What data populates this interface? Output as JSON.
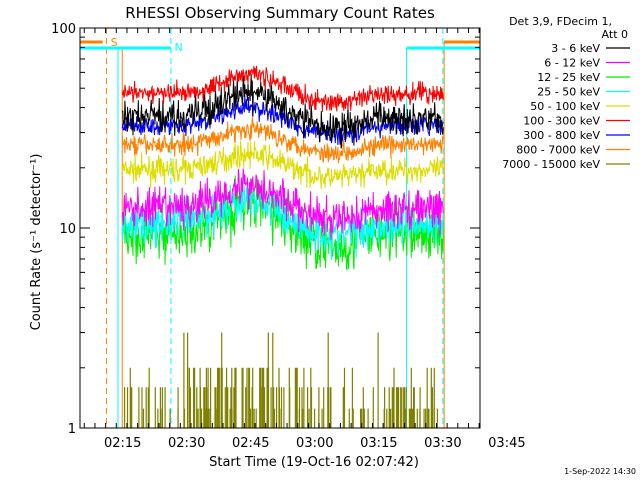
{
  "chart_data": {
    "type": "line",
    "title": "RHESSI Observing Summary Count Rates",
    "xlabel": "Start Time (19-Oct-16 02:07:42)",
    "ylabel": "Count Rate (s⁻¹ detector⁻¹)",
    "yscale": "log",
    "ylim": [
      1,
      100
    ],
    "xlim_minutes": [
      -2.7,
      91
    ],
    "y_ticks": [
      "1",
      "10",
      "100"
    ],
    "x_ticks": [
      {
        "label": "02:15",
        "minute": 7.3
      },
      {
        "label": "02:30",
        "minute": 22.3
      },
      {
        "label": "02:45",
        "minute": 37.3
      },
      {
        "label": "03:00",
        "minute": 52.3
      },
      {
        "label": "03:15",
        "minute": 67.3
      },
      {
        "label": "03:30",
        "minute": 82.3
      },
      {
        "label": "03:45",
        "minute": 97.3
      }
    ],
    "legend_header": [
      "Det 3,9, FDecim 1,",
      "Att 0"
    ],
    "legend_position": "right",
    "series": [
      {
        "name": "3 - 6 keV",
        "color": "#000000",
        "base": 36,
        "amp": 0.12,
        "noise": 0.08
      },
      {
        "name": "6 - 12 keV",
        "color": "#ff00ff",
        "base": 12.5,
        "amp": 0.12,
        "noise": 0.1
      },
      {
        "name": "12 - 25 keV",
        "color": "#00ee00",
        "base": 9.5,
        "amp": 0.15,
        "noise": 0.14
      },
      {
        "name": "25 - 50 keV",
        "color": "#00ffff",
        "base": 10.5,
        "amp": 0.12,
        "noise": 0.1
      },
      {
        "name": "50 - 100 keV",
        "color": "#dddd00",
        "base": 19.5,
        "amp": 0.08,
        "noise": 0.06
      },
      {
        "name": "100 - 300 keV",
        "color": "#ff0000",
        "base": 47,
        "amp": 0.1,
        "noise": 0.05
      },
      {
        "name": "300 - 800 keV",
        "color": "#0000ff",
        "base": 32.5,
        "amp": 0.09,
        "noise": 0.05
      },
      {
        "name": "800 - 7000 keV",
        "color": "#ff8000",
        "base": 26,
        "amp": 0.08,
        "noise": 0.05
      },
      {
        "name": "7000 - 15000 keV",
        "color": "#808000",
        "base": 1,
        "amp": 0,
        "noise": 0
      }
    ],
    "annotations": [
      {
        "label": "S",
        "color": "#ff8000"
      },
      {
        "label": "N",
        "color": "#00ffff"
      }
    ],
    "footer_timestamp": "1-Sep-2022 14:30"
  }
}
